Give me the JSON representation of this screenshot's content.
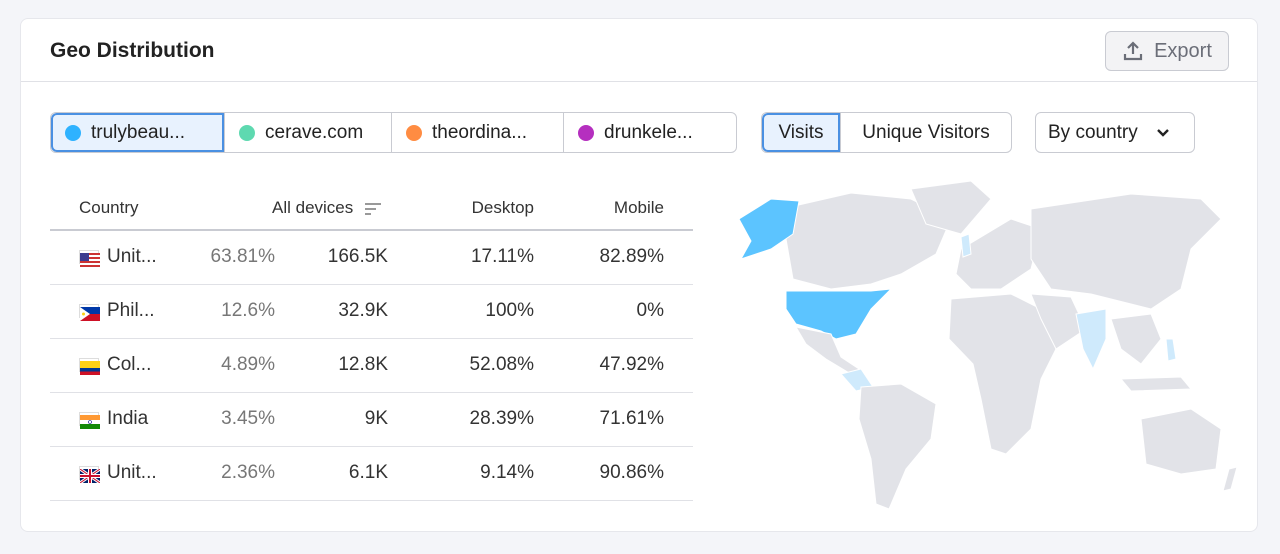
{
  "header": {
    "title": "Geo Distribution",
    "export_label": "Export"
  },
  "domains": [
    {
      "label": "trulybeau...",
      "color": "#2eb2ff",
      "active": true
    },
    {
      "label": "cerave.com",
      "color": "#5ed9b0",
      "active": false
    },
    {
      "label": "theordina...",
      "color": "#ff8c42",
      "active": false
    },
    {
      "label": "drunkele...",
      "color": "#b52fbf",
      "active": false
    }
  ],
  "metric_toggle": {
    "options": [
      "Visits",
      "Unique Visitors"
    ],
    "selected": "Visits"
  },
  "group_by": {
    "selected": "By country"
  },
  "table": {
    "columns": [
      "Country",
      "All devices",
      "Desktop",
      "Mobile"
    ],
    "rows": [
      {
        "flag": "us",
        "country": "Unit...",
        "share": "63.81%",
        "all": "166.5K",
        "desktop": "17.11%",
        "mobile": "82.89%"
      },
      {
        "flag": "ph",
        "country": "Phil...",
        "share": "12.6%",
        "all": "32.9K",
        "desktop": "100%",
        "mobile": "0%"
      },
      {
        "flag": "co",
        "country": "Col...",
        "share": "4.89%",
        "all": "12.8K",
        "desktop": "52.08%",
        "mobile": "47.92%"
      },
      {
        "flag": "in",
        "country": "India",
        "share": "3.45%",
        "all": "9K",
        "desktop": "28.39%",
        "mobile": "71.61%"
      },
      {
        "flag": "gb",
        "country": "Unit...",
        "share": "2.36%",
        "all": "6.1K",
        "desktop": "9.14%",
        "mobile": "90.86%"
      }
    ]
  },
  "map_colors": {
    "base": "#e2e3e8",
    "high": "#5cc4ff",
    "low": "#cfeafc"
  }
}
